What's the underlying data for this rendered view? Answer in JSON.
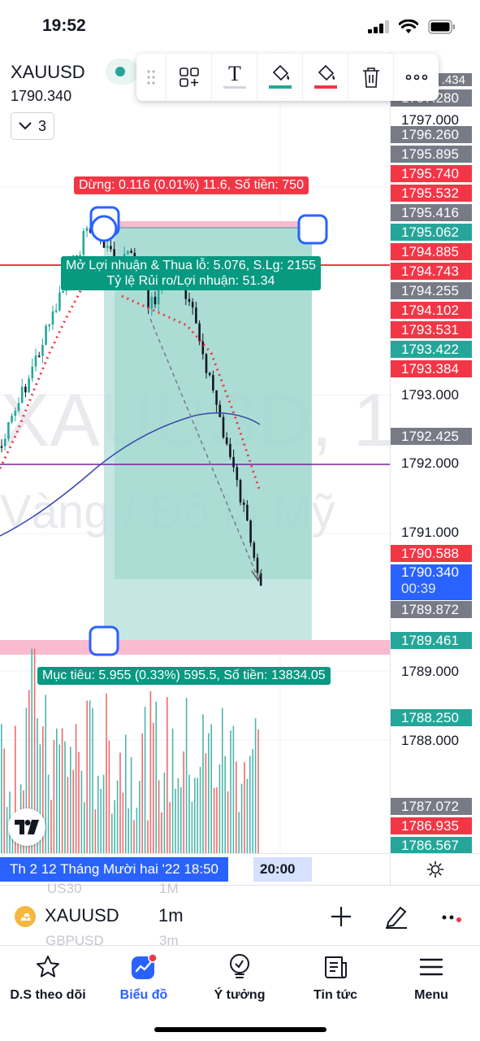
{
  "status": {
    "time": "19:52"
  },
  "symbol": {
    "name": "XAUUSD",
    "price": "1790.340",
    "indicator_count": "3"
  },
  "watermark": {
    "line1": "XAUUSD, 1",
    "line2": "Vàng / Đô la Mỹ"
  },
  "toolbar": {
    "icons": [
      "drag-handle-icon",
      "template-icon",
      "text-icon",
      "fill-color-icon",
      "border-color-icon",
      "trash-icon",
      "more-icon"
    ],
    "text_glyph": "T"
  },
  "position": {
    "stop_label": "Dừng: 0.116 (0.01%) 11.6, Số tiền: 750",
    "pnl_line1": "Mở Lợi nhuận & Thua lỗ: 5.076, S.Lg: 2155",
    "pnl_line2": "Tỷ lệ Rủi ro/Lợi nhuận: 51.34",
    "target_label": "Mục tiêu: 5.955 (0.33%) 595.5, Số tiền: 13834.05"
  },
  "price_axis": {
    "top_partial": ".434",
    "labels": [
      {
        "text": "1797.280",
        "style": "gray"
      },
      {
        "text": "1797.000",
        "style": "plain"
      },
      {
        "text": "1796.260",
        "style": "gray"
      },
      {
        "text": "1795.895",
        "style": "gray"
      },
      {
        "text": "1795.740",
        "style": "red"
      },
      {
        "text": "1795.532",
        "style": "red"
      },
      {
        "text": "1795.416",
        "style": "gray"
      },
      {
        "text": "1795.062",
        "style": "green"
      },
      {
        "text": "1794.885",
        "style": "red"
      },
      {
        "text": "1794.743",
        "style": "red"
      },
      {
        "text": "1794.255",
        "style": "gray"
      },
      {
        "text": "1794.102",
        "style": "red"
      },
      {
        "text": "1793.531",
        "style": "red"
      },
      {
        "text": "1793.422",
        "style": "green"
      },
      {
        "text": "1793.384",
        "style": "red"
      },
      {
        "text": "1793.000",
        "style": "plain"
      },
      {
        "text": "1792.425",
        "style": "gray"
      },
      {
        "text": "1792.000",
        "style": "plain"
      },
      {
        "text": "1791.000",
        "style": "plain"
      },
      {
        "text": "1790.588",
        "style": "red"
      },
      {
        "text": "1790.340",
        "style": "blue",
        "sub": "00:39"
      },
      {
        "text": "1789.872",
        "style": "gray"
      },
      {
        "text": "1789.461",
        "style": "green"
      },
      {
        "text": "1789.000",
        "style": "plain"
      },
      {
        "text": "1788.250",
        "style": "green"
      },
      {
        "text": "1788.000",
        "style": "plain"
      },
      {
        "text": "1787.072",
        "style": "gray"
      },
      {
        "text": "1786.935",
        "style": "red"
      },
      {
        "text": "1786.567",
        "style": "green"
      }
    ]
  },
  "time_axis": {
    "cursor_label": "Th 2 12 Tháng Mười hai '22   18:50",
    "next_label": "20:00"
  },
  "symbol_bar": {
    "symbol": "XAUUSD",
    "interval": "1m",
    "ghost_symbol_1": "US30",
    "ghost_interval_1": "1M",
    "ghost_symbol_2": "GBPUSD",
    "ghost_interval_2": "3m"
  },
  "nav": {
    "items": [
      "D.S theo dõi",
      "Biểu đồ",
      "Ý tưởng",
      "Tin tức",
      "Menu"
    ],
    "active": "Biểu đồ"
  },
  "colors": {
    "accent": "#2962ff",
    "up": "#26a69a",
    "down": "#f23645",
    "profit_zone": "#b2dfdb",
    "loss_zone": "#f8bbd0"
  }
}
